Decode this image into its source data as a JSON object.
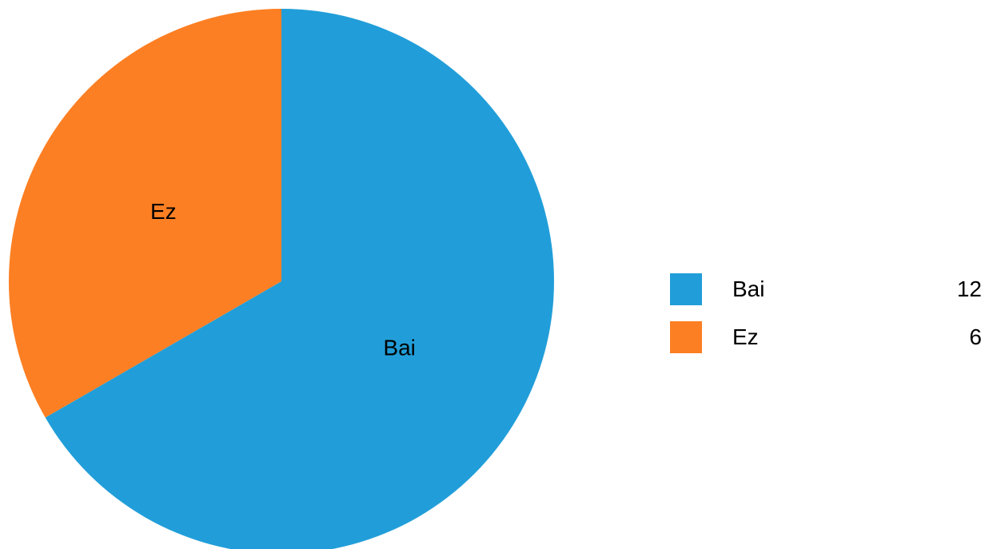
{
  "chart_data": {
    "type": "pie",
    "title": "",
    "categories": [
      "Bai",
      "Ez"
    ],
    "values": [
      12,
      6
    ],
    "colors": [
      "#219ed9",
      "#fd7f23"
    ],
    "start_angle_deg": 0,
    "direction": "clockwise",
    "legend": {
      "placement": "right",
      "entries": [
        {
          "label": "Bai",
          "value": "12",
          "color": "#219ed9"
        },
        {
          "label": "Ez",
          "value": "6",
          "color": "#fd7f23"
        }
      ]
    }
  }
}
